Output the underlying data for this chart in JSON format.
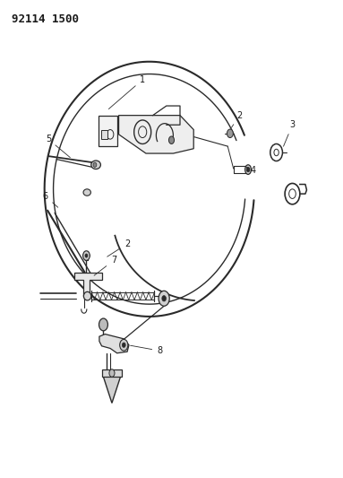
{
  "title": "92114 1500",
  "bg_color": "#ffffff",
  "line_color": "#2a2a2a",
  "label_color": "#1a1a1a",
  "label_fontsize": 7,
  "fig_width": 3.83,
  "fig_height": 5.33,
  "dpi": 100
}
